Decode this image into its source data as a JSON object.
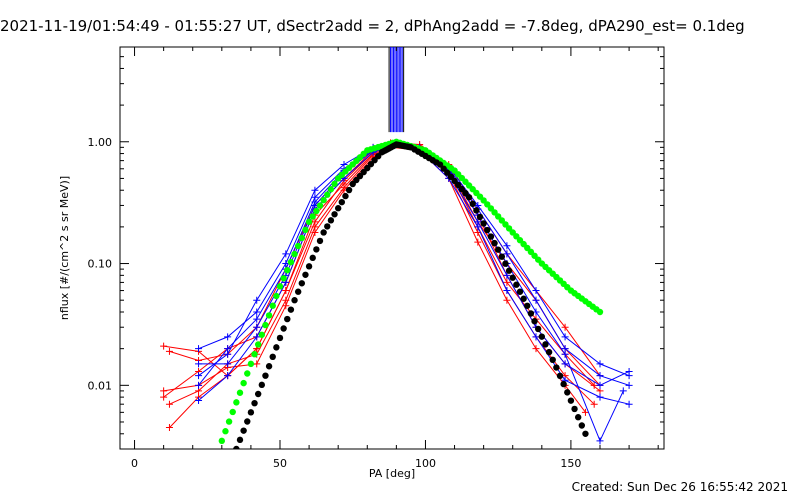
{
  "header": {
    "title": "2021-11-19/01:54:49 - 01:55:27 UT, dSectr2add = 2, dPhAng2add = -7.8deg, dPA290_est=  0.1deg"
  },
  "footer": {
    "created": "Created: Sun Dec 26 16:55:42 2021"
  },
  "chart_data": {
    "type": "line",
    "xlabel": "PA [deg]",
    "ylabel": "nflux [#/(cm^2 s sr MeV)]",
    "xscale": "linear",
    "yscale": "log",
    "xlim": [
      -5,
      182
    ],
    "ylim": [
      0.003,
      6
    ],
    "xticks": [
      0,
      50,
      100,
      150
    ],
    "xtick_labels": [
      "0",
      "50",
      "100",
      "150"
    ],
    "yticks": [
      0.01,
      0.1,
      1
    ],
    "ytick_labels": [
      "0.01",
      "0.10",
      "1.00"
    ],
    "grid": false,
    "legend": "none",
    "colors": {
      "red": "#ff0000",
      "blue": "#0000ff",
      "green": "#00ff00",
      "black": "#000000"
    },
    "series": [
      {
        "color": "red",
        "marker": "plus",
        "x": [
          10,
          22,
          32,
          42,
          52,
          62,
          72,
          82,
          88,
          98,
          108,
          118,
          128,
          138,
          148,
          160
        ],
        "y": [
          0.021,
          0.019,
          0.012,
          0.02,
          0.06,
          0.25,
          0.45,
          0.8,
          0.95,
          0.9,
          0.6,
          0.22,
          0.1,
          0.05,
          0.02,
          0.01
        ]
      },
      {
        "color": "red",
        "marker": "plus",
        "x": [
          10,
          22,
          32,
          42,
          52,
          62,
          72,
          82,
          88,
          98,
          108,
          118,
          128,
          138,
          148,
          160
        ],
        "y": [
          0.008,
          0.013,
          0.02,
          0.025,
          0.07,
          0.28,
          0.5,
          0.85,
          0.97,
          0.92,
          0.62,
          0.25,
          0.08,
          0.03,
          0.015,
          0.009
        ]
      },
      {
        "color": "red",
        "marker": "plus",
        "x": [
          12,
          22,
          32,
          42,
          52,
          62,
          72,
          82,
          88,
          98,
          108,
          118,
          128,
          138,
          148,
          160
        ],
        "y": [
          0.019,
          0.016,
          0.018,
          0.03,
          0.09,
          0.3,
          0.55,
          0.9,
          0.98,
          0.95,
          0.65,
          0.28,
          0.12,
          0.06,
          0.03,
          0.012
        ]
      },
      {
        "color": "red",
        "marker": "plus",
        "x": [
          12,
          22,
          32,
          42,
          52,
          62,
          72,
          82,
          88,
          98,
          108,
          118,
          128,
          138,
          148,
          158
        ],
        "y": [
          0.007,
          0.009,
          0.015,
          0.018,
          0.05,
          0.2,
          0.42,
          0.78,
          0.92,
          0.88,
          0.55,
          0.18,
          0.06,
          0.025,
          0.012,
          0.007
        ]
      },
      {
        "color": "red",
        "marker": "plus",
        "x": [
          12,
          22,
          32,
          42,
          52,
          62,
          72,
          82,
          88,
          98,
          108,
          118,
          128,
          138,
          148,
          158
        ],
        "y": [
          0.0045,
          0.008,
          0.012,
          0.02,
          0.06,
          0.22,
          0.48,
          0.82,
          0.95,
          0.9,
          0.58,
          0.2,
          0.07,
          0.035,
          0.018,
          0.01
        ]
      },
      {
        "color": "red",
        "marker": "plus",
        "x": [
          10,
          22,
          32,
          42,
          52,
          62,
          72,
          82,
          88,
          98,
          108,
          118,
          128,
          138,
          148,
          155
        ],
        "y": [
          0.009,
          0.01,
          0.014,
          0.015,
          0.045,
          0.18,
          0.4,
          0.75,
          0.9,
          0.85,
          0.5,
          0.15,
          0.05,
          0.02,
          0.01,
          0.006
        ]
      },
      {
        "color": "blue",
        "marker": "plus",
        "x": [
          22,
          32,
          42,
          52,
          62,
          72,
          82,
          90,
          98,
          108,
          118,
          128,
          138,
          148,
          160,
          170
        ],
        "y": [
          0.02,
          0.025,
          0.04,
          0.1,
          0.35,
          0.6,
          0.88,
          0.97,
          0.9,
          0.6,
          0.28,
          0.12,
          0.05,
          0.02,
          0.012,
          0.01
        ]
      },
      {
        "color": "blue",
        "marker": "plus",
        "x": [
          22,
          32,
          42,
          52,
          62,
          72,
          82,
          90,
          98,
          108,
          118,
          128,
          138,
          148,
          160,
          170
        ],
        "y": [
          0.015,
          0.015,
          0.03,
          0.08,
          0.3,
          0.55,
          0.85,
          0.96,
          0.88,
          0.55,
          0.22,
          0.08,
          0.03,
          0.015,
          0.01,
          0.013
        ]
      },
      {
        "color": "blue",
        "marker": "plus",
        "x": [
          22,
          32,
          42,
          52,
          62,
          72,
          82,
          90,
          98,
          108,
          118,
          128,
          138,
          148,
          160,
          170
        ],
        "y": [
          0.0075,
          0.012,
          0.025,
          0.07,
          0.28,
          0.5,
          0.82,
          0.95,
          0.85,
          0.5,
          0.2,
          0.06,
          0.025,
          0.011,
          0.008,
          0.007
        ]
      },
      {
        "color": "blue",
        "marker": "plus",
        "x": [
          22,
          32,
          42,
          52,
          62,
          72,
          82,
          90,
          98,
          108,
          118,
          128,
          138,
          148,
          160,
          168
        ],
        "y": [
          0.01,
          0.02,
          0.035,
          0.09,
          0.32,
          0.58,
          0.86,
          0.96,
          0.87,
          0.58,
          0.25,
          0.1,
          0.04,
          0.018,
          0.0035,
          0.009
        ]
      },
      {
        "color": "blue",
        "marker": "plus",
        "x": [
          22,
          32,
          42,
          52,
          62,
          72,
          82,
          90,
          98,
          108,
          118,
          128,
          138,
          148,
          160,
          170
        ],
        "y": [
          0.012,
          0.018,
          0.05,
          0.12,
          0.4,
          0.65,
          0.9,
          0.98,
          0.9,
          0.62,
          0.3,
          0.14,
          0.06,
          0.025,
          0.015,
          0.012
        ]
      },
      {
        "color": "green",
        "marker": "dot",
        "x": [
          30,
          40,
          50,
          60,
          70,
          80,
          90,
          100,
          110,
          120,
          130,
          140,
          150,
          160
        ],
        "y": [
          0.0035,
          0.015,
          0.065,
          0.22,
          0.5,
          0.85,
          1.0,
          0.85,
          0.58,
          0.33,
          0.18,
          0.1,
          0.06,
          0.04
        ]
      },
      {
        "color": "black",
        "marker": "dot",
        "x": [
          35,
          45,
          55,
          65,
          75,
          85,
          90,
          95,
          105,
          115,
          125,
          135,
          145,
          155
        ],
        "y": [
          0.003,
          0.012,
          0.05,
          0.18,
          0.45,
          0.82,
          0.95,
          0.9,
          0.65,
          0.35,
          0.13,
          0.045,
          0.014,
          0.004
        ]
      }
    ],
    "vertical_markers": [
      {
        "color": "blue",
        "x": [
          88,
          88.5,
          89,
          89.5,
          90,
          90.5,
          91,
          91.5,
          92
        ],
        "y_from": 1.2
      },
      {
        "color": "black",
        "x": [
          87.5,
          92.5
        ],
        "y_from": 1.2
      }
    ]
  }
}
